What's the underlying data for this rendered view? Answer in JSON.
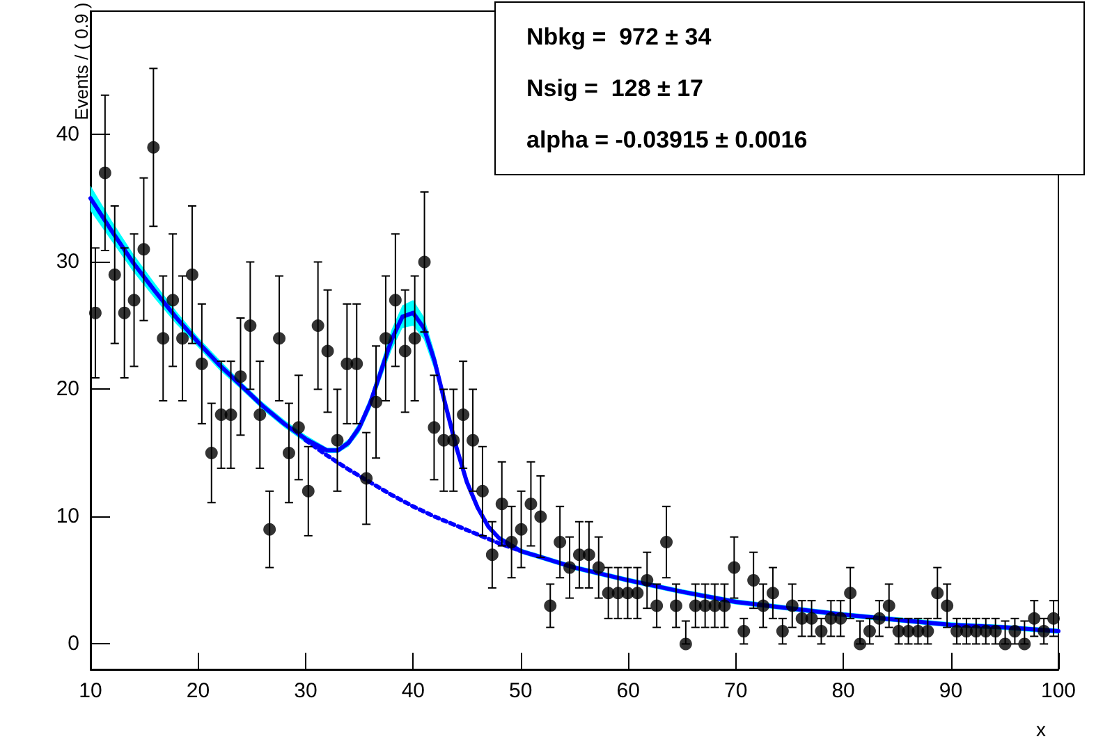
{
  "chart_data": {
    "type": "scatter",
    "xlabel": "x",
    "ylabel": "Events / ( 0.9 )",
    "xlim": [
      10,
      100
    ],
    "xticks": [
      10,
      20,
      30,
      40,
      50,
      60,
      70,
      80,
      90,
      100
    ],
    "ylim": [
      -2,
      49.7
    ],
    "yticks": [
      0,
      10,
      20,
      30,
      40
    ],
    "grid": false,
    "annotations": [
      "Nbkg =  972 ± 34",
      "Nsig =  128 ± 17",
      "alpha = -0.03915 ± 0.0016"
    ],
    "series": [
      {
        "type": "line",
        "color": "#0000ff",
        "line_style": "dotted",
        "x": [
          30,
          32,
          34,
          36,
          38,
          40,
          42,
          44,
          46,
          48,
          50
        ],
        "values": [
          16.0,
          14.8,
          13.7,
          12.7,
          11.7,
          10.8,
          10.0,
          9.3,
          8.6,
          7.9,
          7.3
        ]
      },
      {
        "type": "line",
        "color": "#0000ff",
        "line_style": "solid",
        "x": [
          10,
          12,
          14,
          16,
          18,
          20,
          22,
          24,
          26,
          28,
          30,
          32,
          33,
          34,
          35,
          36,
          37,
          38,
          39,
          40,
          41,
          42,
          43,
          44,
          45,
          46,
          47,
          48,
          50,
          55,
          60,
          65,
          70,
          75,
          80,
          85,
          90,
          95,
          100
        ],
        "values": [
          35.0,
          32.4,
          29.9,
          27.7,
          25.6,
          23.7,
          21.9,
          20.3,
          18.7,
          17.3,
          16.1,
          15.2,
          15.2,
          15.8,
          17.0,
          18.9,
          21.4,
          23.9,
          25.7,
          26.0,
          24.8,
          22.2,
          18.8,
          15.5,
          12.7,
          10.7,
          9.2,
          8.3,
          7.3,
          6.0,
          5.0,
          4.1,
          3.3,
          2.8,
          2.3,
          1.9,
          1.5,
          1.3,
          1.0
        ],
        "lower": [
          34.0,
          31.6,
          29.2,
          27.1,
          25.1,
          23.3,
          21.5,
          20.0,
          18.4,
          17.0,
          15.8,
          15.0,
          15.0,
          15.5,
          16.6,
          18.4,
          20.8,
          23.1,
          24.8,
          25.0,
          23.9,
          21.5,
          18.3,
          15.2,
          12.5,
          10.5,
          9.0,
          8.1,
          7.1,
          5.8,
          4.8,
          3.9,
          3.1,
          2.6,
          2.1,
          1.7,
          1.3,
          1.1,
          0.8
        ],
        "upper": [
          36.0,
          33.2,
          30.6,
          28.3,
          26.1,
          24.1,
          22.3,
          20.6,
          19.0,
          17.6,
          16.4,
          15.4,
          15.4,
          16.1,
          17.4,
          19.4,
          22.0,
          24.7,
          26.6,
          27.0,
          25.7,
          22.9,
          19.3,
          15.8,
          12.9,
          10.9,
          9.4,
          8.5,
          7.5,
          6.2,
          5.2,
          4.3,
          3.5,
          3.0,
          2.5,
          2.1,
          1.7,
          1.5,
          1.2
        ]
      },
      {
        "marker": "circle",
        "color": "#000000",
        "x": [
          10.45,
          11.35,
          12.25,
          13.15,
          14.05,
          14.95,
          15.85,
          16.75,
          17.65,
          18.55,
          19.45,
          20.35,
          21.25,
          22.15,
          23.05,
          23.95,
          24.85,
          25.75,
          26.65,
          27.55,
          28.45,
          29.35,
          30.25,
          31.15,
          32.05,
          32.95,
          33.85,
          34.75,
          35.65,
          36.55,
          37.45,
          38.35,
          39.25,
          40.15,
          41.05,
          41.95,
          42.85,
          43.75,
          44.65,
          45.55,
          46.45,
          47.35,
          48.25,
          49.15,
          50.05,
          50.95,
          51.85,
          52.75,
          53.65,
          54.55,
          55.45,
          56.35,
          57.25,
          58.15,
          59.05,
          59.95,
          60.85,
          61.75,
          62.65,
          63.55,
          64.45,
          65.35,
          66.25,
          67.15,
          68.05,
          68.95,
          69.85,
          70.75,
          71.65,
          72.55,
          73.45,
          74.35,
          75.25,
          76.15,
          77.05,
          77.95,
          78.85,
          79.75,
          80.65,
          81.55,
          82.45,
          83.35,
          84.25,
          85.15,
          86.05,
          86.95,
          87.85,
          88.75,
          89.65,
          90.55,
          91.45,
          92.35,
          93.25,
          94.15,
          95.05,
          95.95,
          96.85,
          97.75,
          98.65,
          99.55
        ],
        "values": [
          26,
          37,
          29,
          26,
          27,
          31,
          39,
          24,
          27,
          24,
          29,
          22,
          15,
          18,
          18,
          21,
          25,
          18,
          9,
          24,
          15,
          17,
          12,
          25,
          23,
          16,
          22,
          22,
          13,
          19,
          24,
          27,
          23,
          24,
          30,
          17,
          16,
          16,
          18,
          16,
          12,
          7,
          11,
          8,
          9,
          11,
          10,
          3,
          8,
          6,
          7,
          7,
          6,
          4,
          4,
          4,
          4,
          5,
          3,
          8,
          3,
          0,
          3,
          3,
          3,
          3,
          6,
          1,
          5,
          3,
          4,
          1,
          3,
          2,
          2,
          1,
          2,
          2,
          4,
          0,
          1,
          2,
          3,
          1,
          1,
          1,
          1,
          4,
          3,
          1,
          1,
          1,
          1,
          1,
          0,
          1,
          0,
          2,
          1,
          2
        ],
        "errors": [
          5.1,
          6.1,
          5.4,
          5.1,
          5.2,
          5.6,
          6.2,
          4.9,
          5.2,
          4.9,
          5.4,
          4.7,
          3.9,
          4.2,
          4.2,
          4.6,
          5,
          4.2,
          3,
          4.9,
          3.9,
          4.1,
          3.5,
          5,
          4.8,
          4,
          4.7,
          4.7,
          3.6,
          4.4,
          4.9,
          5.2,
          4.8,
          4.9,
          5.5,
          4.1,
          4,
          4,
          4.2,
          4,
          3.5,
          2.6,
          3.3,
          2.8,
          3,
          3.3,
          3.2,
          1.7,
          2.8,
          2.4,
          2.6,
          2.6,
          2.4,
          2,
          2,
          2,
          2,
          2.2,
          1.7,
          2.8,
          1.7,
          [
            0,
            1.8
          ],
          1.7,
          1.7,
          1.7,
          1.7,
          2.4,
          1,
          2.2,
          1.7,
          2,
          1,
          1.7,
          1.4,
          1.4,
          1,
          1.4,
          1.4,
          2,
          [
            0,
            1.8
          ],
          1,
          1.4,
          1.7,
          1,
          1,
          1,
          1,
          2,
          1.7,
          1,
          1,
          1,
          1,
          1,
          [
            0,
            1.8
          ],
          1,
          [
            0,
            1.8
          ],
          1.4,
          1,
          1.4
        ]
      }
    ]
  }
}
